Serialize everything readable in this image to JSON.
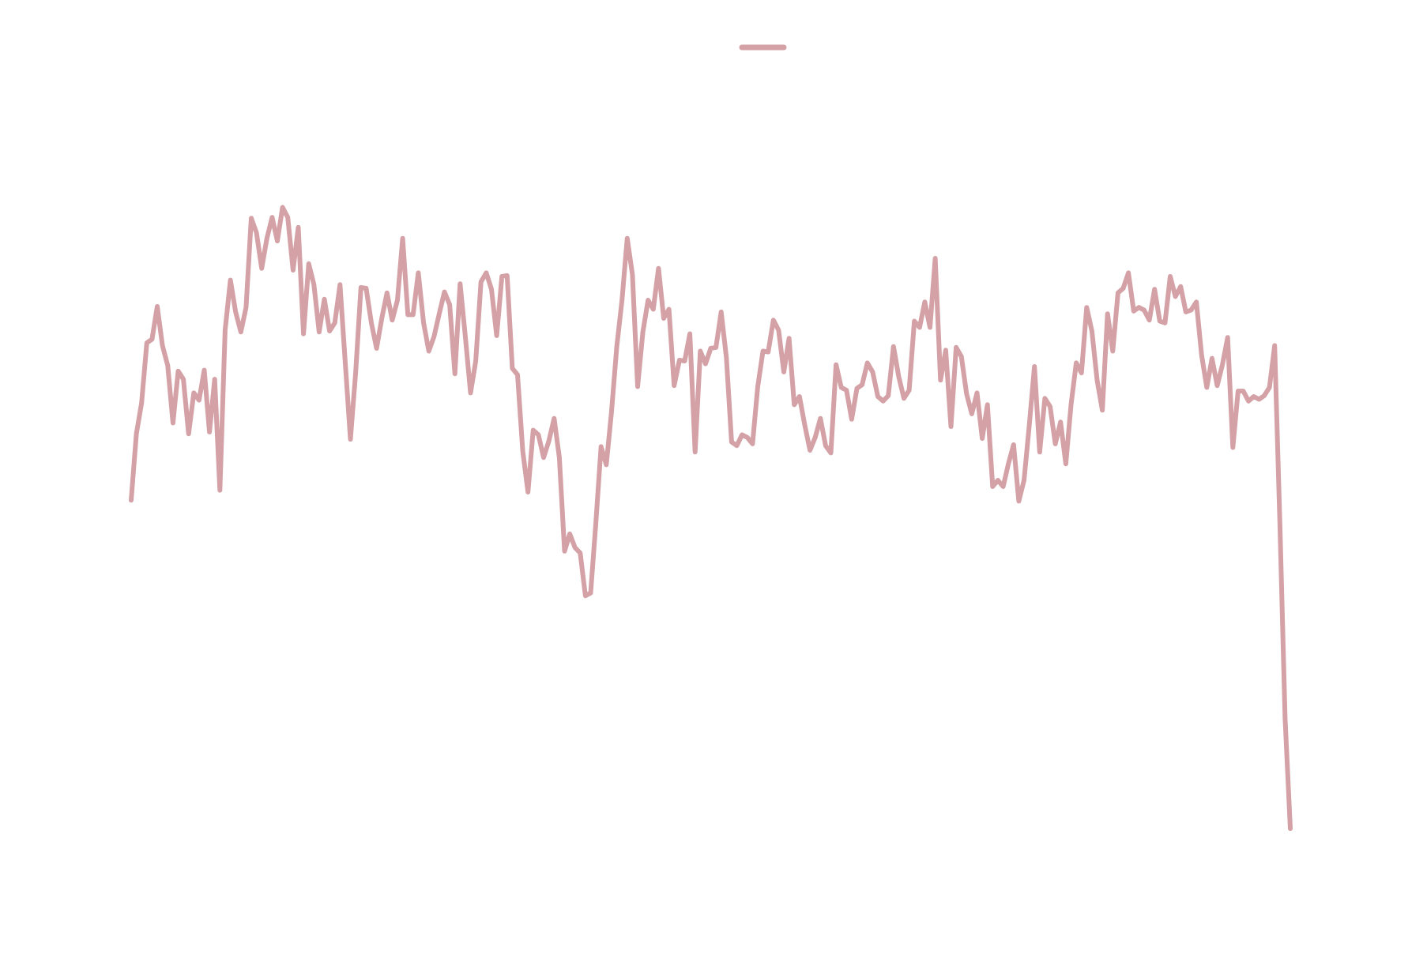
{
  "chart_data": {
    "type": "line",
    "ylim": [
      0,
      1050
    ],
    "series": [
      {
        "color": "#d4a1a6",
        "values": [
          500,
          573,
          607,
          673,
          677,
          713,
          670,
          648,
          585,
          642,
          633,
          573,
          618,
          610,
          643,
          575,
          633,
          511,
          687,
          742,
          707,
          685,
          712,
          810,
          794,
          755,
          788,
          811,
          785,
          822,
          811,
          753,
          800,
          683,
          760,
          737,
          685,
          721,
          686,
          695,
          737,
          652,
          567,
          640,
          734,
          733,
          695,
          667,
          700,
          728,
          698,
          720,
          788,
          704,
          704,
          750,
          695,
          664,
          680,
          705,
          729,
          715,
          639,
          738,
          680,
          618,
          653,
          740,
          750,
          732,
          681,
          746,
          747,
          645,
          638,
          554,
          509,
          577,
          572,
          547,
          565,
          590,
          547,
          444,
          463,
          448,
          442,
          395,
          398,
          475,
          559,
          539,
          597,
          669,
          720,
          788,
          748,
          625,
          685,
          720,
          710,
          755,
          700,
          710,
          626,
          654,
          653,
          683,
          553,
          664,
          650,
          667,
          668,
          707,
          657,
          564,
          560,
          572,
          569,
          562,
          625,
          664,
          663,
          698,
          687,
          641,
          678,
          605,
          614,
          583,
          555,
          569,
          590,
          560,
          552,
          649,
          624,
          621,
          589,
          623,
          627,
          651,
          641,
          614,
          609,
          615,
          669,
          636,
          612,
          621,
          697,
          690,
          718,
          690,
          766,
          632,
          665,
          581,
          668,
          658,
          617,
          595,
          618,
          568,
          605,
          515,
          522,
          515,
          540,
          561,
          499,
          522,
          582,
          647,
          553,
          612,
          603,
          562,
          586,
          540,
          605,
          651,
          640,
          712,
          686,
          632,
          599,
          705,
          664,
          728,
          733,
          750,
          708,
          712,
          709,
          698,
          732,
          697,
          695,
          746,
          724,
          735,
          707,
          709,
          718,
          660,
          624,
          656,
          626,
          649,
          679,
          558,
          620,
          620,
          609,
          614,
          611,
          615,
          624,
          670,
          475,
          260,
          139
        ]
      }
    ]
  }
}
